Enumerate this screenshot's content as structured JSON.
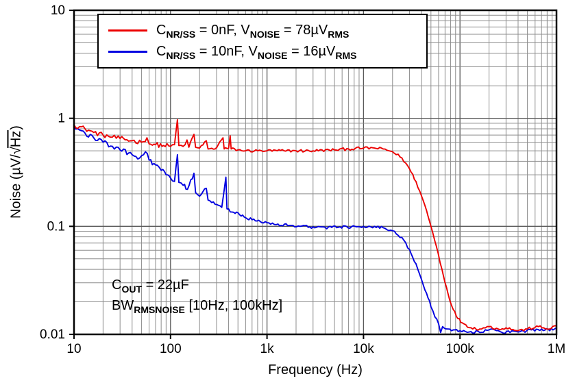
{
  "chart_data": {
    "type": "line",
    "xscale": "log",
    "yscale": "log",
    "xlabel": "Frequency (Hz)",
    "ylabel_parts": {
      "pre": "Noise (µV/",
      "radical": "√",
      "under_root": "Hz",
      "post": ")"
    },
    "xlim": [
      10,
      1000000
    ],
    "ylim": [
      0.01,
      10
    ],
    "grid": {
      "major_color": "#595959",
      "minor_color": "#8c8c8c"
    },
    "x_ticks": [
      {
        "value": 10,
        "label": "10"
      },
      {
        "value": 100,
        "label": "100"
      },
      {
        "value": 1000,
        "label": "1k"
      },
      {
        "value": 10000,
        "label": "10k"
      },
      {
        "value": 100000,
        "label": "100k"
      },
      {
        "value": 1000000,
        "label": "1M"
      }
    ],
    "y_ticks": [
      {
        "value": 10,
        "label": "10"
      },
      {
        "value": 1,
        "label": "1"
      },
      {
        "value": 0.1,
        "label": "0.1"
      },
      {
        "value": 0.01,
        "label": "0.01"
      }
    ],
    "legend_position": "top-left-inside",
    "annotation": {
      "line1": [
        "C",
        "OUT",
        " = 22µF"
      ],
      "line2": [
        "BW",
        "RMSNOISE",
        " [10Hz, 100kHz]"
      ]
    },
    "series": [
      {
        "id": "0nF",
        "name": "CNR/SS = 0nF, VNOISE = 78uVRMS",
        "label_parts": [
          "C",
          "NR/SS",
          " = 0nF, V",
          "NOISE",
          " = 78µV",
          "RMS"
        ],
        "color": "#ec0000",
        "jitter": 0.013,
        "points": [
          [
            10,
            0.87
          ],
          [
            13,
            0.8
          ],
          [
            16,
            0.74
          ],
          [
            20,
            0.7
          ],
          [
            25,
            0.67
          ],
          [
            30,
            0.65
          ],
          [
            40,
            0.62
          ],
          [
            50,
            0.6
          ],
          [
            57,
            0.66
          ],
          [
            60,
            0.58
          ],
          [
            70,
            0.57
          ],
          [
            85,
            0.56
          ],
          [
            100,
            0.55
          ],
          [
            110,
            0.57
          ],
          [
            118,
            0.97
          ],
          [
            122,
            0.56
          ],
          [
            135,
            0.55
          ],
          [
            148,
            0.63
          ],
          [
            155,
            0.54
          ],
          [
            175,
            0.71
          ],
          [
            182,
            0.54
          ],
          [
            200,
            0.53
          ],
          [
            235,
            0.62
          ],
          [
            245,
            0.52
          ],
          [
            290,
            0.52
          ],
          [
            350,
            0.66
          ],
          [
            360,
            0.52
          ],
          [
            400,
            0.53
          ],
          [
            415,
            0.69
          ],
          [
            425,
            0.52
          ],
          [
            500,
            0.51
          ],
          [
            600,
            0.5
          ],
          [
            800,
            0.5
          ],
          [
            1000,
            0.5
          ],
          [
            1500,
            0.5
          ],
          [
            2000,
            0.5
          ],
          [
            3000,
            0.5
          ],
          [
            5000,
            0.51
          ],
          [
            7000,
            0.52
          ],
          [
            10000,
            0.53
          ],
          [
            13000,
            0.53
          ],
          [
            16000,
            0.52
          ],
          [
            20000,
            0.49
          ],
          [
            25000,
            0.43
          ],
          [
            30000,
            0.34
          ],
          [
            35000,
            0.26
          ],
          [
            40000,
            0.19
          ],
          [
            45000,
            0.14
          ],
          [
            50000,
            0.1
          ],
          [
            57000,
            0.065
          ],
          [
            65000,
            0.04
          ],
          [
            75000,
            0.024
          ],
          [
            85000,
            0.017
          ],
          [
            95000,
            0.014
          ],
          [
            110000,
            0.0125
          ],
          [
            130000,
            0.0115
          ],
          [
            160000,
            0.0112
          ],
          [
            200000,
            0.0118
          ],
          [
            250000,
            0.0112
          ],
          [
            300000,
            0.0115
          ],
          [
            400000,
            0.0108
          ],
          [
            500000,
            0.0112
          ],
          [
            650000,
            0.0118
          ],
          [
            800000,
            0.0112
          ],
          [
            1000000,
            0.012
          ]
        ]
      },
      {
        "id": "10nF",
        "name": "CNR/SS = 10nF, VNOISE = 16uVRMS",
        "label_parts": [
          "C",
          "NR/SS",
          " = 10nF, V",
          "NOISE",
          " = 16µV",
          "RMS"
        ],
        "color": "#0000e0",
        "jitter": 0.014,
        "points": [
          [
            10,
            0.82
          ],
          [
            13,
            0.73
          ],
          [
            16,
            0.66
          ],
          [
            20,
            0.6
          ],
          [
            25,
            0.55
          ],
          [
            30,
            0.51
          ],
          [
            40,
            0.46
          ],
          [
            48,
            0.43
          ],
          [
            55,
            0.49
          ],
          [
            60,
            0.41
          ],
          [
            70,
            0.37
          ],
          [
            80,
            0.33
          ],
          [
            90,
            0.3
          ],
          [
            100,
            0.28
          ],
          [
            110,
            0.26
          ],
          [
            118,
            0.46
          ],
          [
            122,
            0.255
          ],
          [
            135,
            0.24
          ],
          [
            150,
            0.22
          ],
          [
            175,
            0.31
          ],
          [
            182,
            0.205
          ],
          [
            200,
            0.19
          ],
          [
            235,
            0.225
          ],
          [
            245,
            0.175
          ],
          [
            290,
            0.16
          ],
          [
            340,
            0.15
          ],
          [
            375,
            0.285
          ],
          [
            385,
            0.145
          ],
          [
            450,
            0.135
          ],
          [
            520,
            0.128
          ],
          [
            600,
            0.12
          ],
          [
            700,
            0.115
          ],
          [
            850,
            0.111
          ],
          [
            1000,
            0.108
          ],
          [
            1300,
            0.105
          ],
          [
            1700,
            0.102
          ],
          [
            2200,
            0.1
          ],
          [
            3000,
            0.099
          ],
          [
            4000,
            0.098
          ],
          [
            5500,
            0.098
          ],
          [
            7500,
            0.099
          ],
          [
            10000,
            0.1
          ],
          [
            13000,
            0.1
          ],
          [
            16000,
            0.097
          ],
          [
            20000,
            0.091
          ],
          [
            25000,
            0.079
          ],
          [
            30000,
            0.061
          ],
          [
            35000,
            0.045
          ],
          [
            40000,
            0.032
          ],
          [
            45000,
            0.024
          ],
          [
            50000,
            0.018
          ],
          [
            55000,
            0.0145
          ],
          [
            60000,
            0.0125
          ],
          [
            63000,
            0.0104
          ],
          [
            66000,
            0.0118
          ],
          [
            75000,
            0.0112
          ],
          [
            85000,
            0.011
          ],
          [
            100000,
            0.0108
          ],
          [
            130000,
            0.0106
          ],
          [
            160000,
            0.0104
          ],
          [
            200000,
            0.011
          ],
          [
            260000,
            0.0106
          ],
          [
            330000,
            0.0104
          ],
          [
            420000,
            0.0106
          ],
          [
            550000,
            0.011
          ],
          [
            700000,
            0.0112
          ],
          [
            850000,
            0.0108
          ],
          [
            1000000,
            0.0115
          ]
        ]
      }
    ]
  }
}
